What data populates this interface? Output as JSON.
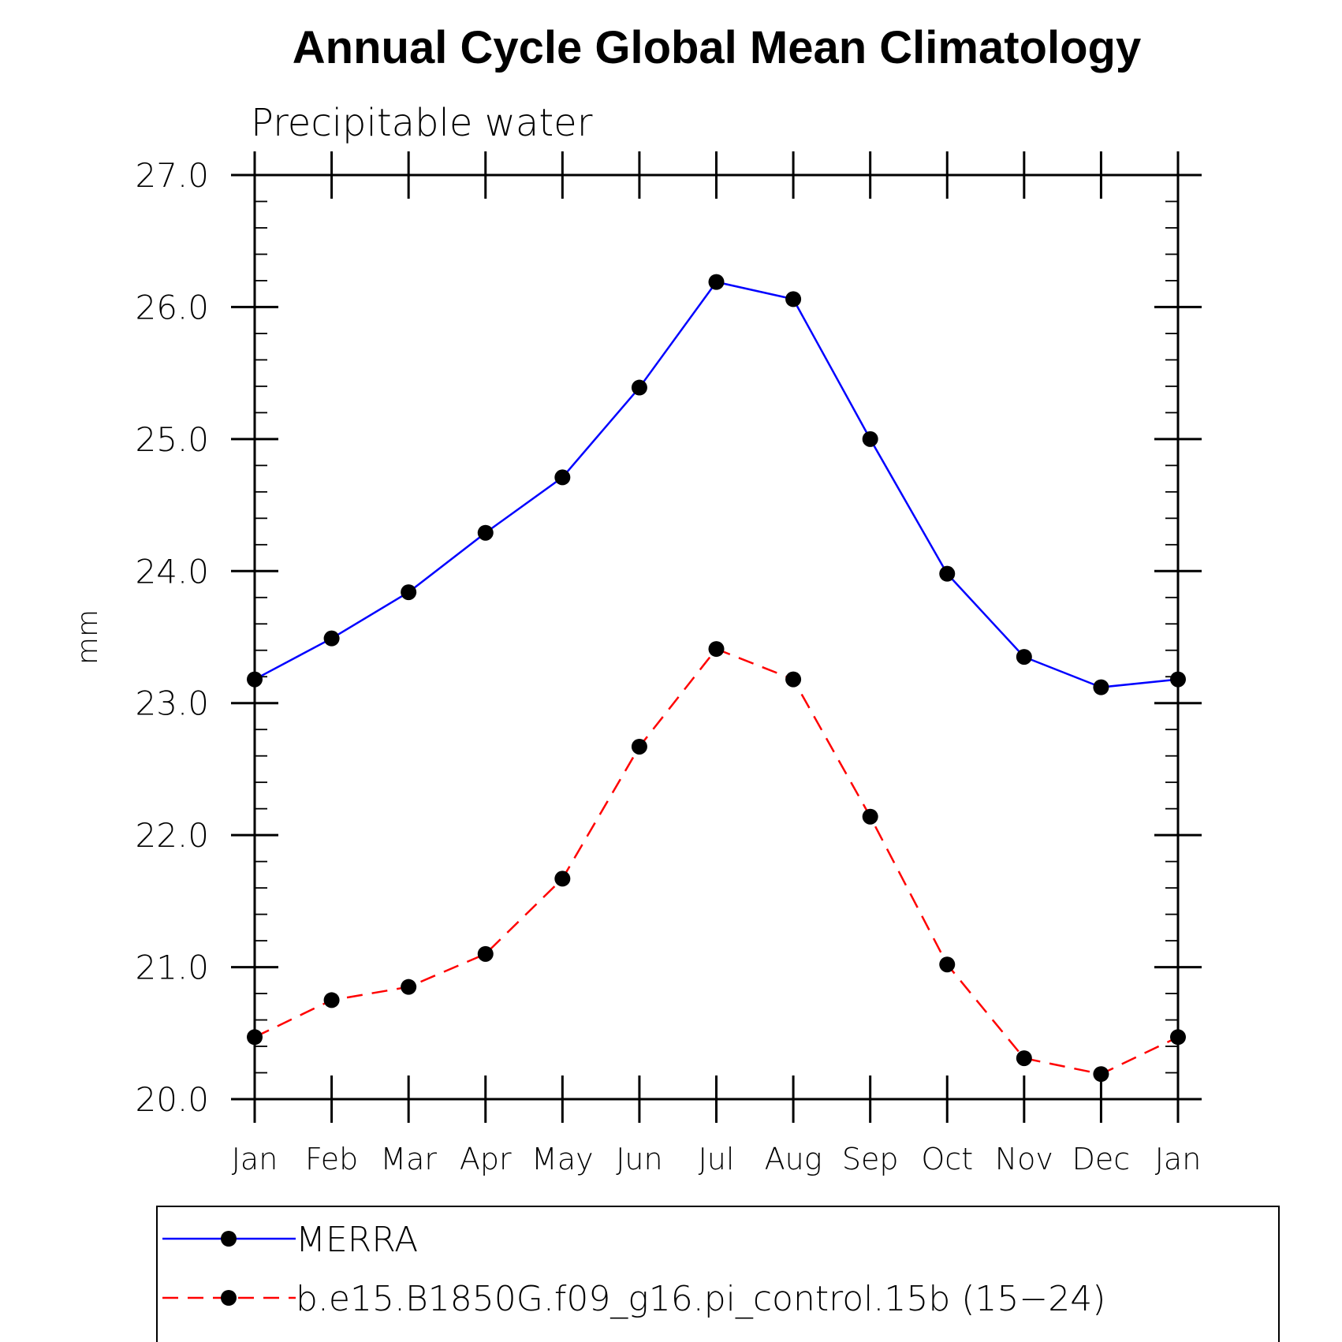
{
  "chart_data": {
    "type": "line",
    "title": "Annual Cycle Global Mean Climatology",
    "subtitle": "Precipitable water",
    "xlabel": "",
    "ylabel": "mm",
    "categories": [
      "Jan",
      "Feb",
      "Mar",
      "Apr",
      "May",
      "Jun",
      "Jul",
      "Aug",
      "Sep",
      "Oct",
      "Nov",
      "Dec",
      "Jan"
    ],
    "ylim": [
      20.0,
      27.0
    ],
    "yticks": [
      "20.0",
      "21.0",
      "22.0",
      "23.0",
      "24.0",
      "25.0",
      "26.0",
      "27.0"
    ],
    "grid": false,
    "legend_position": "bottom",
    "series": [
      {
        "name": "MERRA",
        "color": "#0000ff",
        "line_style": "solid",
        "marker": "filled-circle",
        "values": [
          23.18,
          23.49,
          23.84,
          24.29,
          24.71,
          25.39,
          26.19,
          26.06,
          25.0,
          23.98,
          23.35,
          23.12,
          23.18
        ]
      },
      {
        "name": "b.e15.B1850G.f09_g16.pi_control.15b (15−24)",
        "color": "#ff0000",
        "line_style": "dashed",
        "marker": "filled-circle",
        "values": [
          20.47,
          20.75,
          20.85,
          21.1,
          21.67,
          22.67,
          23.41,
          23.18,
          22.14,
          21.02,
          20.31,
          20.19,
          20.47
        ]
      }
    ]
  }
}
